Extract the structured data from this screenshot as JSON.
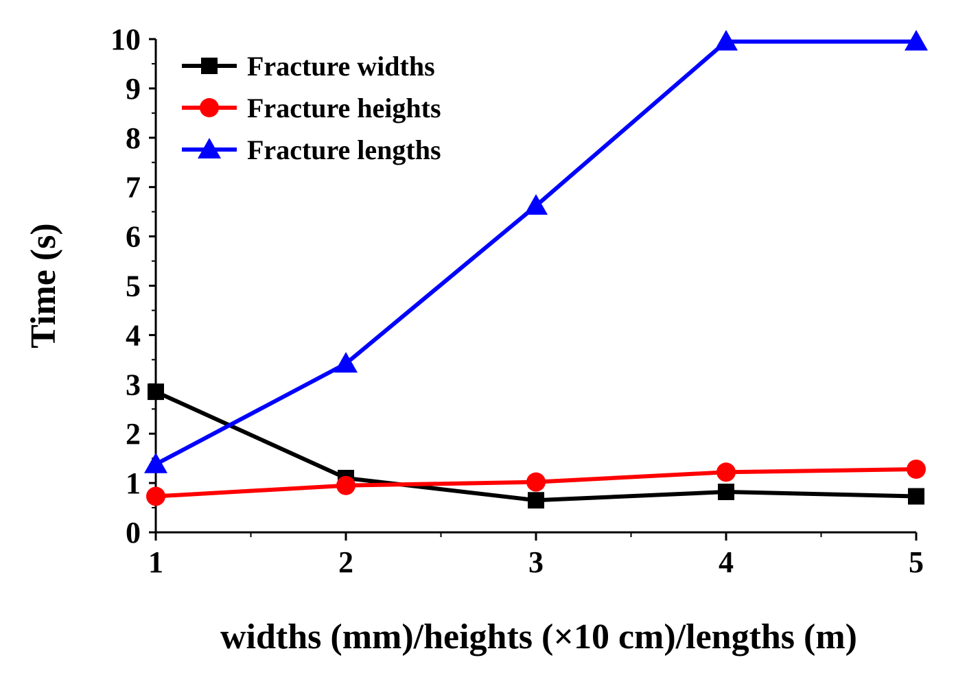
{
  "chart_data": {
    "type": "line",
    "title": "",
    "xlabel": "widths (mm)/heights (×10 cm)/lengths (m)",
    "ylabel": "Time (s)",
    "x": [
      1,
      2,
      3,
      4,
      5
    ],
    "xlim": [
      1,
      5
    ],
    "ylim": [
      0,
      10
    ],
    "xticks": [
      "1",
      "2",
      "3",
      "4",
      "5"
    ],
    "yticks": [
      "0",
      "1",
      "2",
      "3",
      "4",
      "5",
      "6",
      "7",
      "8",
      "9",
      "10"
    ],
    "grid": false,
    "legend_position": "top-left",
    "series": [
      {
        "name": "Fracture widths",
        "color": "#000000",
        "marker": "square",
        "values": [
          2.85,
          1.1,
          0.65,
          0.82,
          0.73
        ]
      },
      {
        "name": "Fracture heights",
        "color": "#ff0000",
        "marker": "circle",
        "values": [
          0.73,
          0.95,
          1.02,
          1.22,
          1.28
        ]
      },
      {
        "name": "Fracture lengths",
        "color": "#0000ff",
        "marker": "triangle",
        "values": [
          1.38,
          3.42,
          6.62,
          9.95,
          9.95
        ]
      }
    ]
  }
}
